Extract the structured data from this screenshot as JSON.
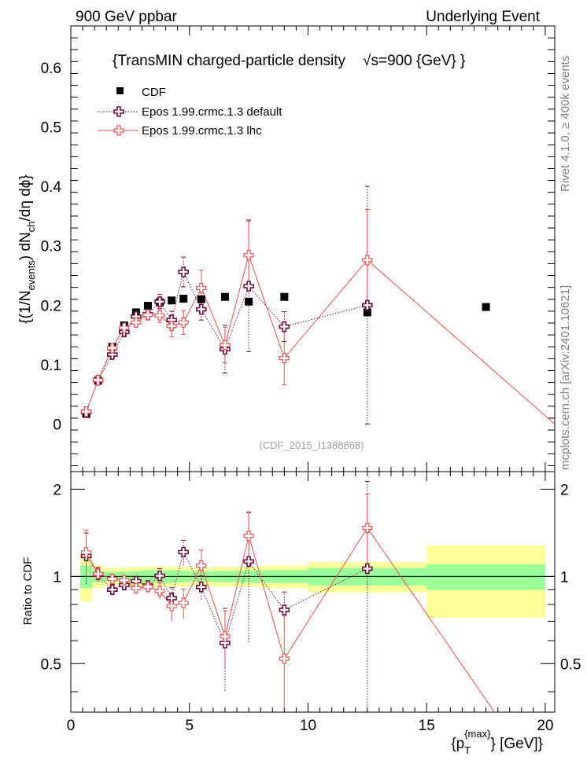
{
  "header": {
    "left": "900 GeV ppbar",
    "right": "Underlying Event"
  },
  "chart_data": {
    "type": "scatter",
    "title": "{TransMIN charged-particle density",
    "title_energy_prefix": "√s",
    "title_energy": "=900 {GeV} }",
    "ylabel_parts": [
      "{(1/N",
      "events",
      ") dN",
      "ch",
      "/dη dϕ}"
    ],
    "xlabel_parts": [
      "{p",
      "T",
      "{max}",
      "} [GeV]}"
    ],
    "ratio_ylabel": "Ratio to CDF",
    "side_label_top": "Rivet 4.1.0, ≥ 400k events",
    "side_label_bottom": "mcplots.cern.ch [arXiv:2401.10621]",
    "watermark": "(CDF_2015_I1388868)",
    "xlim": [
      0,
      20.4
    ],
    "ylim": [
      -0.08,
      0.67
    ],
    "ratio_ylim": [
      0.34,
      2.3
    ],
    "x_ticks": [
      0,
      5,
      10,
      15,
      20
    ],
    "x_tick_labels": [
      "0",
      "5",
      "10",
      "15",
      "20"
    ],
    "y_ticks": [
      0,
      0.1,
      0.2,
      0.3,
      0.4,
      0.5,
      0.6
    ],
    "y_tick_labels": [
      "0",
      "0.1",
      "0.2",
      "0.3",
      "0.4",
      "0.5",
      "0.6"
    ],
    "ratio_ticks": [
      0.5,
      1,
      2
    ],
    "ratio_tick_labels": [
      "0.5",
      "1",
      "2"
    ],
    "legend": [
      {
        "name": "CDF",
        "color": "#000000",
        "marker": "square"
      },
      {
        "name": "Epos 1.99.crmc.1.3 default",
        "color": "#6b0f3f",
        "marker": "cross",
        "line": "dotted"
      },
      {
        "name": "Epos 1.99.crmc.1.3 lhc",
        "color": "#ee5050",
        "marker": "cross",
        "line": "solid"
      }
    ],
    "cdf": {
      "x": [
        0.65,
        1.15,
        1.75,
        2.25,
        2.75,
        3.25,
        3.75,
        4.25,
        4.75,
        5.5,
        6.5,
        7.5,
        9.0,
        12.5,
        17.5
      ],
      "y": [
        0.017,
        0.073,
        0.13,
        0.166,
        0.188,
        0.199,
        0.205,
        0.208,
        0.211,
        0.21,
        0.214,
        0.206,
        0.214,
        0.188,
        0.197
      ]
    },
    "band_edges": [
      0.4,
      0.9,
      1.4,
      2.0,
      2.5,
      3.0,
      3.5,
      4.0,
      4.5,
      5.0,
      6.0,
      7.0,
      8.0,
      10.0,
      15.0,
      20.0
    ],
    "band_stat_err": [
      0.09,
      0.045,
      0.038,
      0.04,
      0.045,
      0.05,
      0.05,
      0.05,
      0.045,
      0.04,
      0.045,
      0.05,
      0.05,
      0.07,
      0.1
    ],
    "band_tot_err": [
      0.18,
      0.09,
      0.07,
      0.07,
      0.08,
      0.08,
      0.08,
      0.08,
      0.08,
      0.07,
      0.08,
      0.08,
      0.09,
      0.12,
      0.28
    ],
    "series": [
      {
        "name": "Epos 1.99.crmc.1.3 default",
        "color": "#6b0f3f",
        "line": "dotted",
        "x": [
          0.65,
          1.15,
          1.75,
          2.25,
          2.75,
          3.25,
          3.75,
          4.25,
          4.75,
          5.5,
          6.5,
          7.5,
          9.0,
          12.5
        ],
        "y": [
          0.02,
          0.074,
          0.117,
          0.155,
          0.181,
          0.185,
          0.206,
          0.175,
          0.256,
          0.193,
          0.126,
          0.232,
          0.164,
          0.2
        ],
        "err": [
          0.004,
          0.004,
          0.005,
          0.006,
          0.007,
          0.007,
          0.012,
          0.015,
          0.025,
          0.018,
          0.04,
          0.11,
          0.025,
          0.2
        ]
      },
      {
        "name": "Epos 1.99.crmc.1.3 lhc",
        "color": "#ee5050",
        "line": "solid",
        "x": [
          0.65,
          1.15,
          1.75,
          2.25,
          2.75,
          3.25,
          3.75,
          4.25,
          4.75,
          5.5,
          6.5,
          7.5,
          9.0,
          12.5,
          20.4
        ],
        "y": [
          0.021,
          0.074,
          0.128,
          0.162,
          0.171,
          0.184,
          0.183,
          0.165,
          0.171,
          0.229,
          0.133,
          0.284,
          0.111,
          0.276,
          0.0
        ],
        "err": [
          0.004,
          0.004,
          0.005,
          0.006,
          0.008,
          0.009,
          0.012,
          0.018,
          0.02,
          0.03,
          0.03,
          0.06,
          0.045,
          0.085,
          0.0
        ],
        "ratio_y": [
          1.21,
          1.02,
          0.98,
          0.97,
          0.91,
          0.92,
          0.89,
          0.79,
          0.81,
          1.09,
          0.62,
          1.38,
          0.52,
          1.47,
          0.17
        ]
      }
    ]
  }
}
